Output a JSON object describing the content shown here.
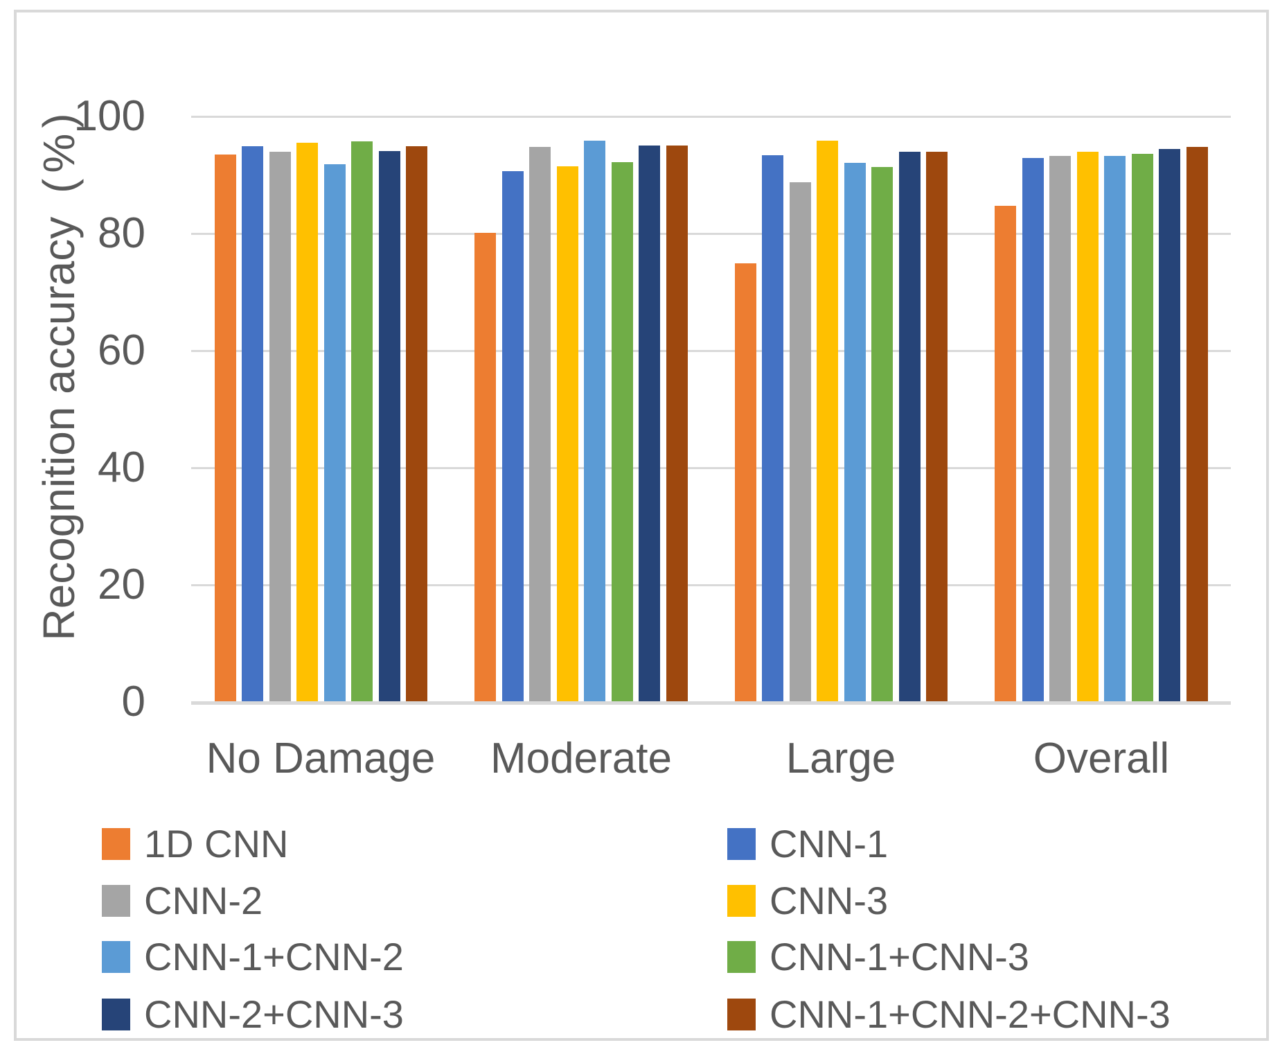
{
  "chart_data": {
    "type": "bar",
    "title": "",
    "ylabel_main": "Recognition accuracy",
    "ylabel_unit": "(%)",
    "xlabel": "",
    "categories": [
      "No Damage",
      "Moderate",
      "Large",
      "Overall"
    ],
    "series": [
      {
        "name": "1D CNN",
        "color": "#ED7D31",
        "values": [
          93.4,
          80.0,
          74.8,
          84.6
        ]
      },
      {
        "name": "CNN-1",
        "color": "#4472C4",
        "values": [
          94.8,
          90.5,
          93.2,
          92.8
        ]
      },
      {
        "name": "CNN-2",
        "color": "#A5A5A5",
        "values": [
          93.9,
          94.7,
          88.6,
          93.1
        ]
      },
      {
        "name": "CNN-3",
        "color": "#FFC000",
        "values": [
          95.4,
          91.4,
          95.7,
          93.9
        ]
      },
      {
        "name": "CNN-1+CNN-2",
        "color": "#5B9BD5",
        "values": [
          91.7,
          95.7,
          91.9,
          93.1
        ]
      },
      {
        "name": "CNN-1+CNN-3",
        "color": "#70AD47",
        "values": [
          95.6,
          92.1,
          91.2,
          93.5
        ]
      },
      {
        "name": "CNN-2+CNN-3",
        "color": "#264478",
        "values": [
          94.0,
          94.9,
          93.8,
          94.3
        ]
      },
      {
        "name": "CNN-1+CNN-2+CNN-3",
        "color": "#9E480E",
        "values": [
          94.8,
          94.9,
          93.9,
          94.7
        ]
      }
    ],
    "ylim": [
      0,
      100
    ],
    "yticks": [
      0,
      20,
      40,
      60,
      80,
      100
    ],
    "grid": "horizontal",
    "legend_position": "bottom, two columns"
  },
  "y_axis": {
    "tick_labels": [
      "100",
      "80",
      "60",
      "40",
      "20",
      "0"
    ]
  },
  "legend": {
    "items": [
      {
        "label": "1D CNN",
        "color": "#ED7D31"
      },
      {
        "label": "CNN-1",
        "color": "#4472C4"
      },
      {
        "label": "CNN-2",
        "color": "#A5A5A5"
      },
      {
        "label": "CNN-3",
        "color": "#FFC000"
      },
      {
        "label": "CNN-1+CNN-2",
        "color": "#5B9BD5"
      },
      {
        "label": "CNN-1+CNN-3",
        "color": "#70AD47"
      },
      {
        "label": "CNN-2+CNN-3",
        "color": "#264478"
      },
      {
        "label": "CNN-1+CNN-2+CNN-3",
        "color": "#9E480E"
      }
    ]
  },
  "colors": {
    "grid": "#D9D9D9",
    "frame": "#D9D9D9",
    "text": "#595959",
    "background": "#FFFFFF"
  }
}
